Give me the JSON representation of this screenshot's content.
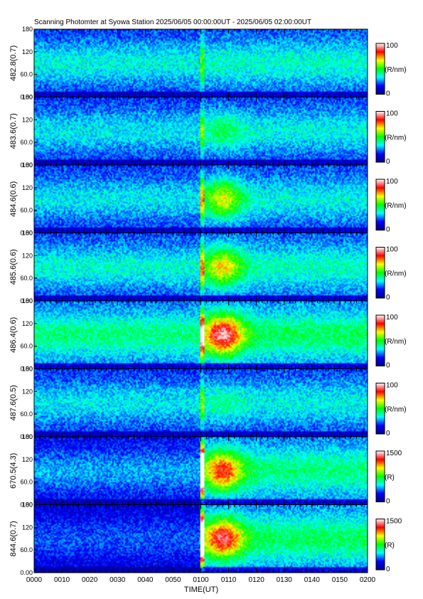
{
  "chart_data": {
    "type": "heatmap",
    "title": "Scanning Photomter at Syowa Station 2025/06/05 00:00:00UT - 2025/06/05 02:00:00UT",
    "xlabel": "TIME(UT)",
    "x_ticks": [
      "0000",
      "0010",
      "0020",
      "0030",
      "0040",
      "0050",
      "0100",
      "0110",
      "0120",
      "0130",
      "0140",
      "0150",
      "0200"
    ],
    "y_ticks": [
      "0.00",
      "60.0",
      "120",
      "180"
    ],
    "ylim": [
      0,
      180
    ],
    "colormap": [
      "#00007f",
      "#0000ff",
      "#00ffff",
      "#00ff00",
      "#ffff00",
      "#ff0000",
      "#ffffff"
    ],
    "panels": [
      {
        "channel": "482.8(0.7)",
        "unit": "(R/nm)",
        "cbar_min": "0",
        "cbar_max": "100",
        "base": 0.35,
        "event": 0.35,
        "pre_dark": 0.0,
        "flash": 0.2
      },
      {
        "channel": "483.6(0.7)",
        "unit": "(R/nm)",
        "cbar_min": "0",
        "cbar_max": "100",
        "base": 0.33,
        "event": 0.42,
        "pre_dark": 0.0,
        "flash": 0.2
      },
      {
        "channel": "484.6(0.6)",
        "unit": "(R/nm)",
        "cbar_min": "0",
        "cbar_max": "100",
        "base": 0.33,
        "event": 0.58,
        "pre_dark": 0.0,
        "flash": 0.3
      },
      {
        "channel": "485.6(0.6)",
        "unit": "(R/nm)",
        "cbar_min": "0",
        "cbar_max": "100",
        "base": 0.36,
        "event": 0.62,
        "pre_dark": 0.0,
        "flash": 0.3
      },
      {
        "channel": "486.4(0.6)",
        "unit": "(R/nm)",
        "cbar_min": "0",
        "cbar_max": "100",
        "base": 0.42,
        "event": 0.85,
        "pre_dark": 0.0,
        "flash": 0.5
      },
      {
        "channel": "487.6(0.5)",
        "unit": "(R/nm)",
        "cbar_min": "0",
        "cbar_max": "100",
        "base": 0.33,
        "event": 0.38,
        "pre_dark": 0.0,
        "flash": 0.2
      },
      {
        "channel": "670.5(4.3)",
        "unit": "(R)",
        "cbar_min": "0",
        "cbar_max": "1500",
        "base": 0.4,
        "event": 0.75,
        "pre_dark": 0.28,
        "flash": 1.0
      },
      {
        "channel": "844.6(0.7)",
        "unit": "(R)",
        "cbar_min": "0",
        "cbar_max": "1500",
        "base": 0.42,
        "event": 0.8,
        "pre_dark": 0.22,
        "flash": 1.0
      }
    ]
  }
}
